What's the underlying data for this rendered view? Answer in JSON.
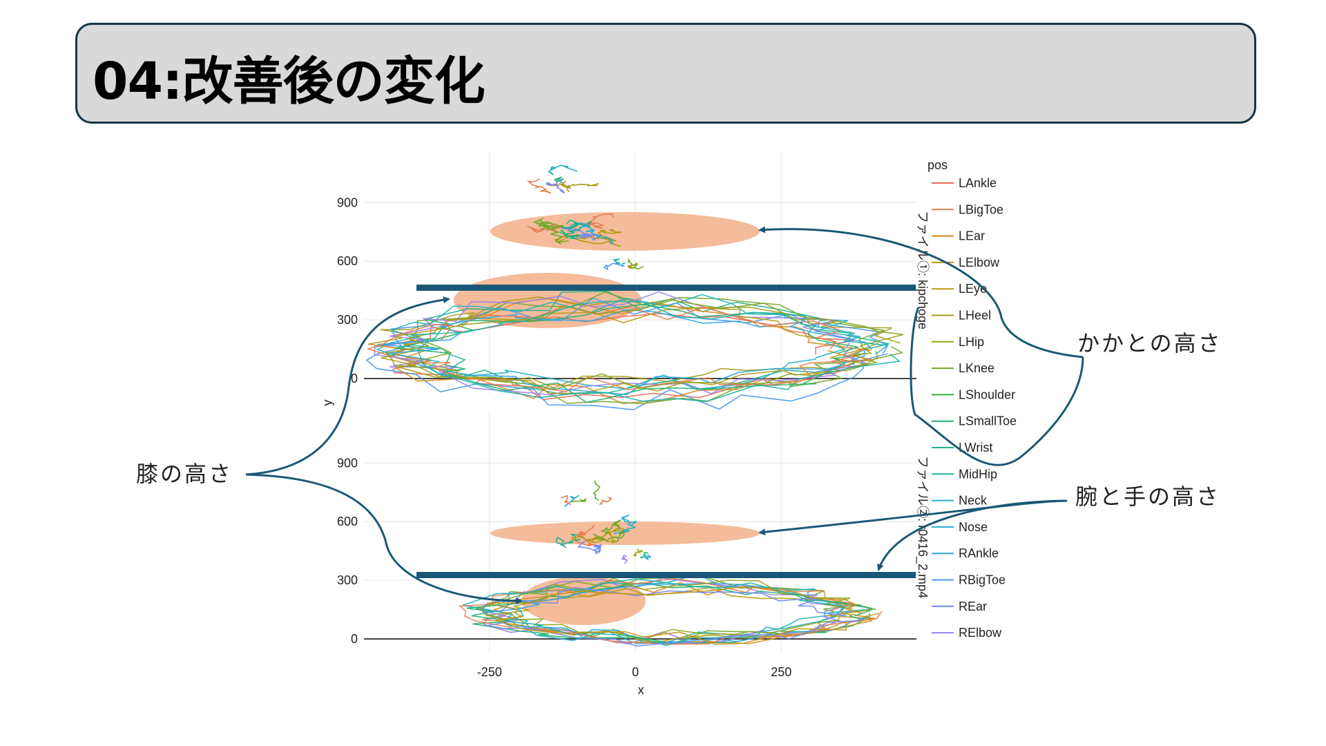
{
  "slide": {
    "title": "04:改善後の変化"
  },
  "annotations": {
    "knee_height": "膝の高さ",
    "heel_height": "かかとの高さ",
    "arm_hand_height": "腕と手の高さ"
  },
  "colors": {
    "ellipse": "#f2b08a",
    "marker_line": "#1a5776",
    "arrow": "#1a5776",
    "title_bg": "#d9d9d9",
    "title_border": "#173446"
  },
  "chart_data": {
    "type": "line",
    "xlabel": "x",
    "ylabel": "y",
    "x_ticks": [
      "-250",
      "0",
      "250"
    ],
    "x_tick_values": [
      -250,
      0,
      250
    ],
    "y_ticks": [
      "0",
      "300",
      "600",
      "900"
    ],
    "y_tick_values": [
      0,
      300,
      600,
      900
    ],
    "xlim": [
      -470,
      480
    ],
    "ylim": [
      -80,
      1160
    ],
    "legend": {
      "title": "pos",
      "placement": "right",
      "items": [
        {
          "name": "LAnkle",
          "color": "#e8685e"
        },
        {
          "name": "LBigToe",
          "color": "#e67d4f"
        },
        {
          "name": "LEar",
          "color": "#d9871a"
        },
        {
          "name": "LElbow",
          "color": "#c4920f"
        },
        {
          "name": "LEye",
          "color": "#b39a10"
        },
        {
          "name": "LHeel",
          "color": "#a39d16"
        },
        {
          "name": "LHip",
          "color": "#8fa31c"
        },
        {
          "name": "LKnee",
          "color": "#72a92a"
        },
        {
          "name": "LShoulder",
          "color": "#36ab3c"
        },
        {
          "name": "LSmallToe",
          "color": "#22ae6a"
        },
        {
          "name": "LWrist",
          "color": "#1fb08f"
        },
        {
          "name": "MidHip",
          "color": "#1db1ad"
        },
        {
          "name": "Neck",
          "color": "#1fb1c5"
        },
        {
          "name": "Nose",
          "color": "#22acd7"
        },
        {
          "name": "RAnkle",
          "color": "#2ba4e4"
        },
        {
          "name": "RBigToe",
          "color": "#4797ec"
        },
        {
          "name": "REar",
          "color": "#6f89ef"
        },
        {
          "name": "RElbow",
          "color": "#9a7ff0"
        }
      ]
    },
    "facets": [
      {
        "label": "ファイル①: kipchoge"
      },
      {
        "label": "ファイル②: r0416_2.mp4"
      }
    ],
    "highlight_levels": {
      "panel_1_knee_line_y": 470,
      "panel_2_knee_line_y": 330
    }
  }
}
